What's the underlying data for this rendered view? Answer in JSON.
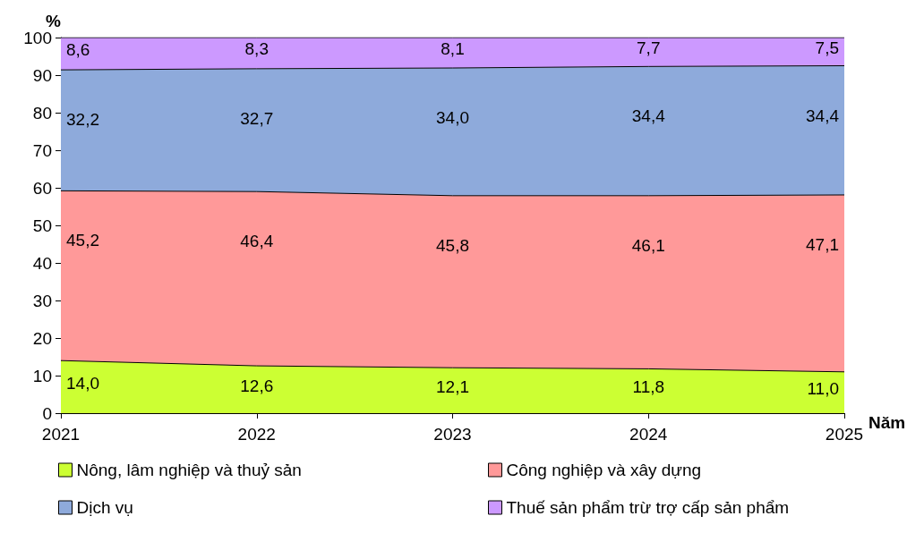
{
  "chart_data": {
    "type": "area",
    "stacked": true,
    "ylabel": "%",
    "xlabel": "Năm",
    "categories": [
      "2021",
      "2022",
      "2023",
      "2024",
      "2025"
    ],
    "ylim": [
      0,
      100
    ],
    "yticks": [
      0,
      10,
      20,
      30,
      40,
      50,
      60,
      70,
      80,
      90,
      100
    ],
    "grid": false,
    "legend": "bottom",
    "marker": "none",
    "series": [
      {
        "name": "Nông, lâm nghiệp và thuỷ sản",
        "color": "#ccff33",
        "values": [
          14.0,
          12.6,
          12.1,
          11.8,
          11.0
        ],
        "value_labels": [
          "14,0",
          "12,6",
          "12,1",
          "11,8",
          "11,0"
        ]
      },
      {
        "name": "Công nghiệp và xây dựng",
        "color": "#ff9999",
        "values": [
          45.2,
          46.4,
          45.8,
          46.1,
          47.1
        ],
        "value_labels": [
          "45,2",
          "46,4",
          "45,8",
          "46,1",
          "47,1"
        ]
      },
      {
        "name": "Dịch vụ",
        "color": "#8eaadb",
        "values": [
          32.2,
          32.7,
          34.0,
          34.4,
          34.4
        ],
        "value_labels": [
          "32,2",
          "32,7",
          "34,0",
          "34,4",
          "34,4"
        ]
      },
      {
        "name": "Thuế sản phẩm trừ trợ cấp sản phẩm",
        "color": "#cc99ff",
        "values": [
          8.6,
          8.3,
          8.1,
          7.7,
          7.5
        ],
        "value_labels": [
          "8,6",
          "8,3",
          "8,1",
          "7,7",
          "7,5"
        ]
      }
    ]
  }
}
